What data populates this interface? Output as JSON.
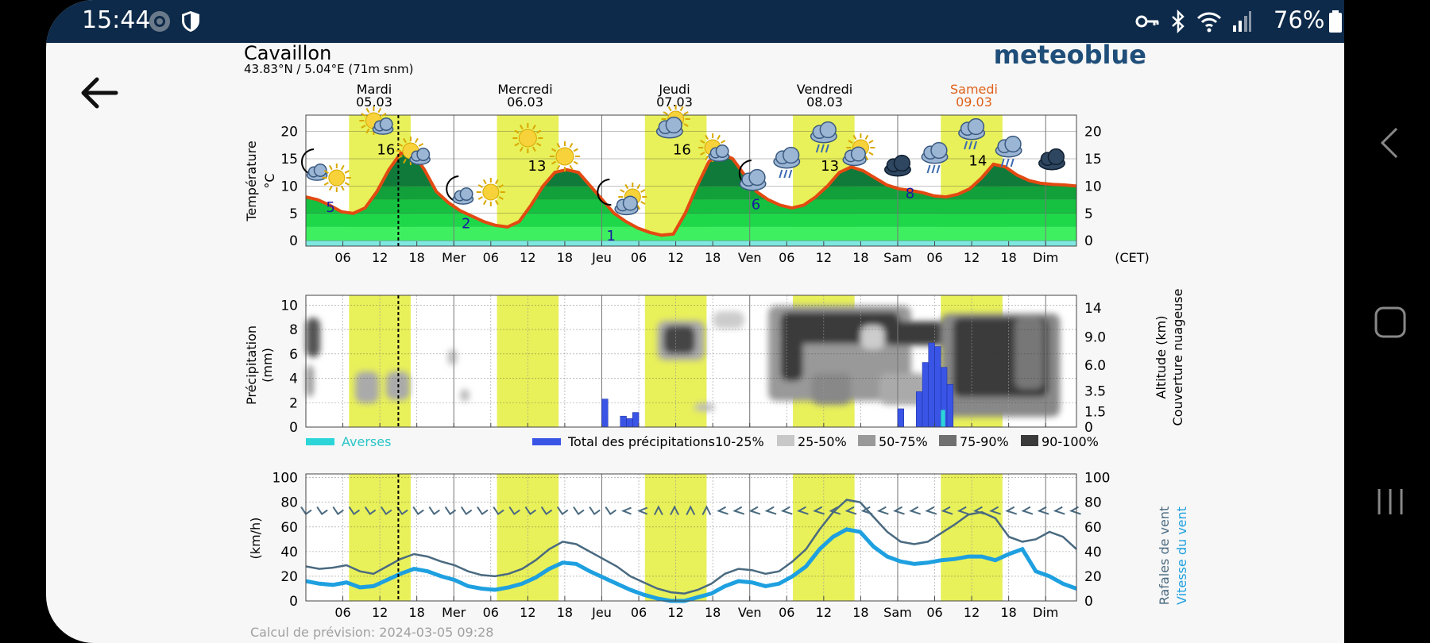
{
  "status_bar": {
    "time": "15:44",
    "battery": "76%",
    "icons": [
      "app-icon",
      "shield-icon",
      "key-icon",
      "bluetooth-icon",
      "wifi-icon",
      "signal-icon",
      "battery-icon"
    ]
  },
  "header": {
    "city": "Cavaillon",
    "coords": "43.83°N / 5.04°E (71m snm)",
    "brand": "meteoblue",
    "brand_color": "#1f4e79"
  },
  "days": [
    {
      "name": "Mardi",
      "date": "05.03",
      "color": "#000000"
    },
    {
      "name": "Mercredi",
      "date": "06.03",
      "color": "#000000"
    },
    {
      "name": "Jeudi",
      "date": "07.03",
      "color": "#000000"
    },
    {
      "name": "Vendredi",
      "date": "08.03",
      "color": "#000000"
    },
    {
      "name": "Samedi",
      "date": "09.03",
      "color": "#e0611a"
    }
  ],
  "x_ticks": [
    "06",
    "12",
    "18",
    "Mer",
    "06",
    "12",
    "18",
    "Jeu",
    "06",
    "12",
    "18",
    "Ven",
    "06",
    "12",
    "18",
    "Sam",
    "06",
    "12",
    "18",
    "Dim"
  ],
  "timezone": "(CET)",
  "temperature_panel": {
    "ylabel": "Température °C",
    "yticks": [
      "0",
      "5",
      "10",
      "15",
      "20"
    ],
    "temp_labels": [
      "5",
      "16",
      "2",
      "13",
      "1",
      "16",
      "6",
      "13",
      "8",
      "14"
    ],
    "temp_values": [
      8,
      7.5,
      6.5,
      5.3,
      5,
      6,
      9,
      13,
      16,
      16.2,
      13,
      9,
      7,
      5.5,
      4.5,
      3.5,
      2.8,
      2.5,
      3.5,
      6.5,
      10,
      12.5,
      13,
      12.5,
      10,
      7.5,
      5,
      3.5,
      2.3,
      1.5,
      1,
      1.2,
      5,
      10,
      14.5,
      16,
      15,
      12,
      9,
      7.5,
      6.5,
      6,
      6.5,
      8,
      10,
      12.5,
      13.5,
      12.8,
      11.5,
      10.2,
      9.5,
      9.2,
      8.8,
      8.2,
      8,
      8.5,
      9.5,
      11.5,
      14,
      13.5,
      12,
      11,
      10.5,
      10.3,
      10.2,
      10
    ]
  },
  "precip_panel": {
    "ylabel": "Précipitation (mm)",
    "yticks": [
      "0",
      "2",
      "4",
      "6",
      "8",
      "10"
    ],
    "right_ticks": [
      "0",
      "1.5",
      "3.5",
      "6.0",
      "9.0",
      "14"
    ],
    "right_label_1": "Altitude (km)",
    "right_label_2": "Couverture nuageuse",
    "legend": {
      "averses": "Averses",
      "total": "Total des précipitations",
      "c1": "10-25%",
      "c2": "25-50%",
      "c3": "50-75%",
      "c4": "75-90%",
      "c5": "90-100%"
    },
    "precip_bars": [
      {
        "h": 48,
        "v": 2.3
      },
      {
        "h": 51,
        "v": 0.9
      },
      {
        "h": 52,
        "v": 0.7
      },
      {
        "h": 53,
        "v": 1.2
      },
      {
        "h": 96,
        "v": 1.5
      },
      {
        "h": 99,
        "v": 2.9
      },
      {
        "h": 100,
        "v": 5.3
      },
      {
        "h": 101,
        "v": 6.9
      },
      {
        "h": 102,
        "v": 6.6
      },
      {
        "h": 103,
        "v": 4.9
      },
      {
        "h": 104,
        "v": 3.5
      }
    ],
    "shower_bars": [
      {
        "h": 103,
        "v": 1.4
      }
    ]
  },
  "wind_panel": {
    "ylabel": "(km/h)",
    "yticks": [
      "0",
      "20",
      "40",
      "60",
      "80",
      "100"
    ],
    "right_label_1": "Rafales de vent",
    "right_label_2": "Vitesse du vent",
    "gust_color": "#4a6a80",
    "speed_color": "#1ea0e0",
    "gusts": [
      28,
      26,
      27,
      29,
      24,
      22,
      28,
      34,
      38,
      36,
      32,
      29,
      24,
      21,
      20,
      22,
      26,
      33,
      42,
      48,
      46,
      40,
      34,
      28,
      20,
      15,
      10,
      7,
      6,
      9,
      14,
      22,
      26,
      25,
      22,
      24,
      32,
      42,
      58,
      72,
      82,
      80,
      68,
      56,
      48,
      46,
      48,
      55,
      62,
      70,
      72,
      67,
      52,
      48,
      50,
      56,
      52,
      42
    ],
    "speeds": [
      16,
      14,
      13,
      15,
      11,
      12,
      17,
      22,
      26,
      24,
      20,
      17,
      12,
      10,
      9,
      11,
      14,
      19,
      26,
      31,
      30,
      24,
      19,
      14,
      9,
      5,
      2,
      0,
      0,
      3,
      6,
      12,
      16,
      15,
      12,
      14,
      20,
      28,
      42,
      52,
      58,
      56,
      44,
      36,
      32,
      30,
      31,
      33,
      34,
      36,
      36,
      33,
      38,
      42,
      24,
      20,
      14,
      10
    ],
    "footer": "Calcul de prévision: 2024-03-05 09:28"
  },
  "colors": {
    "yellow_band": "#e8f05a",
    "temp_line": "#e24a12",
    "precip_blue": "#3a55e6",
    "shower_cyan": "#2cd5d8",
    "status_bg": "#0d2a4a"
  }
}
